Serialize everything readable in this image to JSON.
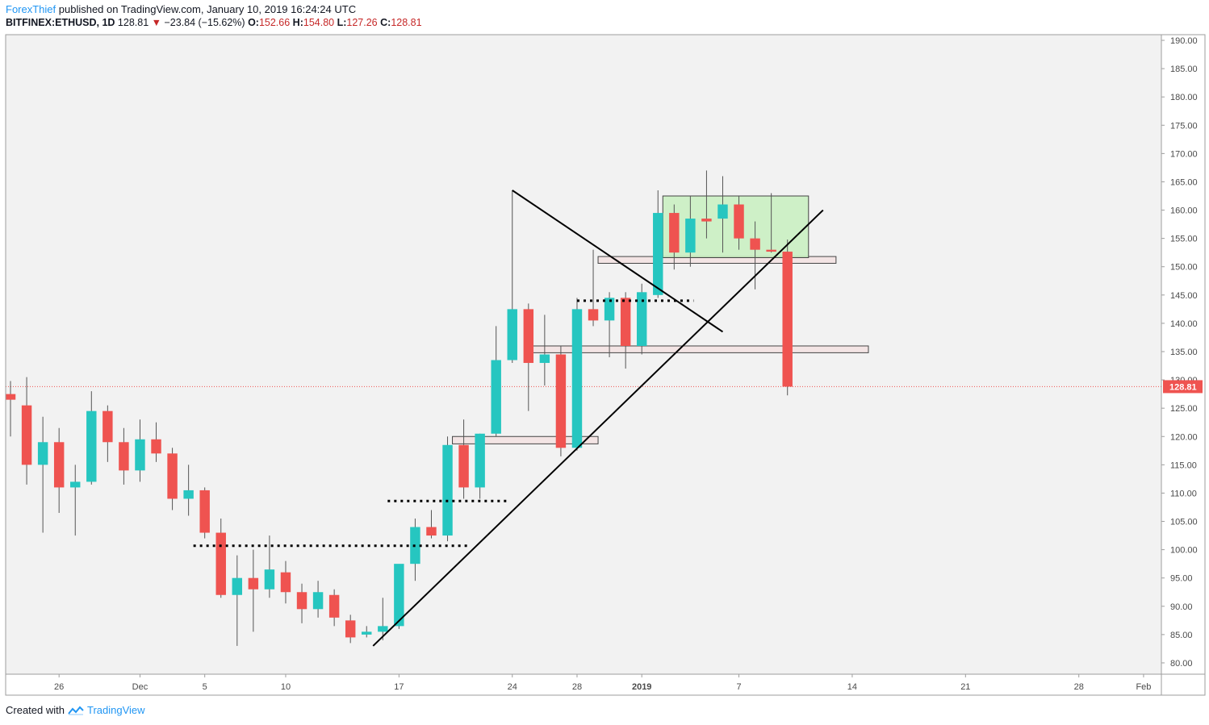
{
  "header": {
    "author": "ForexThief",
    "published_text": " published on TradingView.com, January 10, 2019 16:24:24 UTC",
    "symbol": "BITFINEX:ETHUSD, 1D",
    "last": "128.81",
    "arrow": "▼",
    "change": "−23.84 (−15.62%)",
    "o_label": "O:",
    "o_value": "152.66",
    "h_label": "H:",
    "h_value": "154.80",
    "l_label": "L:",
    "l_value": "127.26",
    "c_label": "C:",
    "c_value": "128.81"
  },
  "footer": {
    "created_with": "Created with",
    "brand": "TradingView"
  },
  "colors": {
    "up": "#26c6c0",
    "down": "#ef5350",
    "background": "#f2f2f2",
    "wick": "#555555",
    "price_line": "#ef5350",
    "green_zone": "#c8f0c0",
    "zone_box": "#f3e4e4"
  },
  "chart_data": {
    "type": "candlestick",
    "y_axis": {
      "min": 78,
      "max": 191,
      "ticks": [
        80,
        85,
        90,
        95,
        100,
        105,
        110,
        115,
        120,
        125,
        130,
        135,
        140,
        145,
        150,
        155,
        160,
        165,
        170,
        175,
        180,
        185,
        190
      ],
      "tick_labels": [
        "80.00",
        "85.00",
        "90.00",
        "95.00",
        "100.00",
        "105.00",
        "110.00",
        "115.00",
        "120.00",
        "125.00",
        "130.00",
        "135.00",
        "140.00",
        "145.00",
        "150.00",
        "155.00",
        "160.00",
        "165.00",
        "170.00",
        "175.00",
        "180.00",
        "185.00",
        "190.00"
      ]
    },
    "x_axis": {
      "labels": [
        {
          "label": "26",
          "day": 3
        },
        {
          "label": "Dec",
          "day": 8
        },
        {
          "label": "5",
          "day": 12
        },
        {
          "label": "10",
          "day": 17
        },
        {
          "label": "17",
          "day": 24
        },
        {
          "label": "24",
          "day": 31
        },
        {
          "label": "28",
          "day": 35
        },
        {
          "label": "2019",
          "day": 39
        },
        {
          "label": "7",
          "day": 45
        },
        {
          "label": "14",
          "day": 52
        },
        {
          "label": "21",
          "day": 59
        },
        {
          "label": "28",
          "day": 66
        },
        {
          "label": "Feb",
          "day": 70
        }
      ],
      "day_range": [
        -0.3,
        71.1
      ]
    },
    "current_price": 128.81,
    "current_price_label": "128.81",
    "candles": [
      {
        "d": 0,
        "o": 127.5,
        "h": 129.8,
        "l": 120.0,
        "c": 126.5
      },
      {
        "d": 1,
        "o": 125.5,
        "h": 130.5,
        "l": 111.5,
        "c": 115.0
      },
      {
        "d": 2,
        "o": 115.0,
        "h": 123.5,
        "l": 103.0,
        "c": 119.0
      },
      {
        "d": 3,
        "o": 119.0,
        "h": 121.5,
        "l": 106.5,
        "c": 111.0
      },
      {
        "d": 4,
        "o": 111.0,
        "h": 115.0,
        "l": 102.5,
        "c": 112.0
      },
      {
        "d": 5,
        "o": 112.0,
        "h": 128.0,
        "l": 111.5,
        "c": 124.5
      },
      {
        "d": 6,
        "o": 124.5,
        "h": 125.5,
        "l": 115.5,
        "c": 119.0
      },
      {
        "d": 7,
        "o": 119.0,
        "h": 121.5,
        "l": 111.5,
        "c": 114.0
      },
      {
        "d": 8,
        "o": 114.0,
        "h": 123.0,
        "l": 112.0,
        "c": 119.5
      },
      {
        "d": 9,
        "o": 119.5,
        "h": 122.5,
        "l": 115.5,
        "c": 117.0
      },
      {
        "d": 10,
        "o": 117.0,
        "h": 118.0,
        "l": 107.0,
        "c": 109.0
      },
      {
        "d": 11,
        "o": 109.0,
        "h": 115.0,
        "l": 106.0,
        "c": 110.5
      },
      {
        "d": 12,
        "o": 110.5,
        "h": 111.0,
        "l": 102.0,
        "c": 103.0
      },
      {
        "d": 13,
        "o": 103.0,
        "h": 105.5,
        "l": 91.5,
        "c": 92.0
      },
      {
        "d": 14,
        "o": 92.0,
        "h": 99.0,
        "l": 83.0,
        "c": 95.0
      },
      {
        "d": 15,
        "o": 95.0,
        "h": 100.0,
        "l": 85.5,
        "c": 93.0
      },
      {
        "d": 16,
        "o": 93.0,
        "h": 102.5,
        "l": 91.5,
        "c": 96.5
      },
      {
        "d": 17,
        "o": 96.0,
        "h": 98.0,
        "l": 90.5,
        "c": 92.5
      },
      {
        "d": 18,
        "o": 92.5,
        "h": 94.0,
        "l": 87.0,
        "c": 89.5
      },
      {
        "d": 19,
        "o": 89.5,
        "h": 94.5,
        "l": 88.0,
        "c": 92.5
      },
      {
        "d": 20,
        "o": 92.0,
        "h": 93.0,
        "l": 86.5,
        "c": 88.0
      },
      {
        "d": 21,
        "o": 87.5,
        "h": 88.5,
        "l": 83.5,
        "c": 84.5
      },
      {
        "d": 22,
        "o": 85.0,
        "h": 86.5,
        "l": 84.5,
        "c": 85.5
      },
      {
        "d": 23,
        "o": 85.5,
        "h": 91.5,
        "l": 84.0,
        "c": 86.5
      },
      {
        "d": 24,
        "o": 86.5,
        "h": 97.0,
        "l": 86.0,
        "c": 97.5
      },
      {
        "d": 25,
        "o": 97.5,
        "h": 105.5,
        "l": 94.5,
        "c": 104.0
      },
      {
        "d": 26,
        "o": 104.0,
        "h": 107.0,
        "l": 102.0,
        "c": 102.5
      },
      {
        "d": 27,
        "o": 102.5,
        "h": 120.0,
        "l": 101.5,
        "c": 118.5
      },
      {
        "d": 28,
        "o": 118.5,
        "h": 123.0,
        "l": 109.0,
        "c": 111.0
      },
      {
        "d": 29,
        "o": 111.0,
        "h": 120.5,
        "l": 109.0,
        "c": 120.5
      },
      {
        "d": 30,
        "o": 120.5,
        "h": 139.5,
        "l": 120.0,
        "c": 133.5
      },
      {
        "d": 31,
        "o": 133.5,
        "h": 163.5,
        "l": 133.0,
        "c": 142.5
      },
      {
        "d": 32,
        "o": 142.5,
        "h": 143.5,
        "l": 124.5,
        "c": 133.0
      },
      {
        "d": 33,
        "o": 133.0,
        "h": 141.5,
        "l": 129.0,
        "c": 134.5
      },
      {
        "d": 34,
        "o": 134.5,
        "h": 136.0,
        "l": 116.5,
        "c": 118.0
      },
      {
        "d": 35,
        "o": 118.0,
        "h": 144.5,
        "l": 117.5,
        "c": 142.5
      },
      {
        "d": 36,
        "o": 142.5,
        "h": 153.0,
        "l": 139.5,
        "c": 140.5
      },
      {
        "d": 37,
        "o": 140.5,
        "h": 145.5,
        "l": 134.0,
        "c": 144.5
      },
      {
        "d": 38,
        "o": 144.5,
        "h": 145.5,
        "l": 132.0,
        "c": 136.0
      },
      {
        "d": 39,
        "o": 136.0,
        "h": 147.0,
        "l": 134.5,
        "c": 145.5
      },
      {
        "d": 40,
        "o": 145.0,
        "h": 163.5,
        "l": 144.5,
        "c": 159.5
      },
      {
        "d": 41,
        "o": 159.5,
        "h": 161.0,
        "l": 149.5,
        "c": 152.5
      },
      {
        "d": 42,
        "o": 152.5,
        "h": 162.5,
        "l": 150.0,
        "c": 158.5
      },
      {
        "d": 43,
        "o": 158.5,
        "h": 167.0,
        "l": 155.0,
        "c": 158.0
      },
      {
        "d": 44,
        "o": 158.5,
        "h": 166.0,
        "l": 152.5,
        "c": 161.0
      },
      {
        "d": 45,
        "o": 161.0,
        "h": 162.5,
        "l": 153.0,
        "c": 155.0
      },
      {
        "d": 46,
        "o": 155.0,
        "h": 158.0,
        "l": 146.0,
        "c": 153.0
      },
      {
        "d": 47,
        "o": 153.0,
        "h": 163.0,
        "l": 152.5,
        "c": 152.66
      },
      {
        "d": 48,
        "o": 152.66,
        "h": 154.8,
        "l": 127.26,
        "c": 128.81
      }
    ],
    "drawings": {
      "trendlines": [
        {
          "name": "rising-trendline",
          "d1": 22.4,
          "p1": 83.0,
          "d2": 50.2,
          "p2": 160.0
        },
        {
          "name": "falling-trendline",
          "d1": 31.0,
          "p1": 163.5,
          "d2": 44.0,
          "p2": 138.5
        }
      ],
      "dotted_lines": [
        {
          "name": "dotted-level-101",
          "d1": 11.3,
          "d2": 28.3,
          "p": 100.7
        },
        {
          "name": "dotted-level-108",
          "d1": 23.3,
          "d2": 30.7,
          "p": 108.6
        },
        {
          "name": "dotted-level-144",
          "d1": 35.0,
          "d2": 42.2,
          "p": 144.0
        }
      ],
      "boxes": [
        {
          "name": "zone-box-119",
          "d1": 27.3,
          "d2": 36.3,
          "p1": 118.7,
          "p2": 120.0
        },
        {
          "name": "zone-box-135",
          "d1": 32.0,
          "d2": 53.0,
          "p1": 134.8,
          "p2": 136.0
        },
        {
          "name": "zone-box-151",
          "d1": 36.3,
          "d2": 51.0,
          "p1": 150.6,
          "p2": 151.8
        },
        {
          "name": "consolidation-box",
          "d1": 40.3,
          "d2": 49.3,
          "p1": 151.6,
          "p2": 162.5,
          "green": true
        }
      ]
    }
  }
}
